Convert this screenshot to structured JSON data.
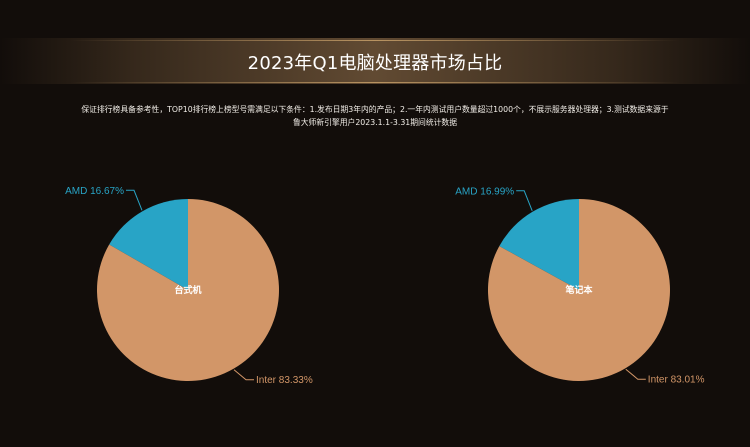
{
  "page": {
    "title": "2023年Q1电脑处理器市场占比",
    "note_line_1": "保证排行榜具备参考性，TOP10排行榜上榜型号需满足以下条件：1.发布日期3年内的产品；2.一年内测试用户数量超过1000个，不展示服务器处理器；3.测试数据来源于",
    "note_line_2": "鲁大师新引擎用户2023.1.1-3.31期间统计数据"
  },
  "colors": {
    "background": "#120d0a",
    "amd": "#28a4c6",
    "inter": "#d29668",
    "text": "#ffffff"
  },
  "chart_data": [
    {
      "type": "pie",
      "center_label": "台式机",
      "slices": [
        {
          "label": "AMD",
          "value": 16.67,
          "display": "AMD 16.67%",
          "color": "#28a4c6"
        },
        {
          "label": "Inter",
          "value": 83.33,
          "display": "Inter 83.33%",
          "color": "#d29668"
        }
      ]
    },
    {
      "type": "pie",
      "center_label": "笔记本",
      "slices": [
        {
          "label": "AMD",
          "value": 16.99,
          "display": "AMD 16.99%",
          "color": "#28a4c6"
        },
        {
          "label": "Inter",
          "value": 83.01,
          "display": "Inter 83.01%",
          "color": "#d29668"
        }
      ]
    }
  ]
}
